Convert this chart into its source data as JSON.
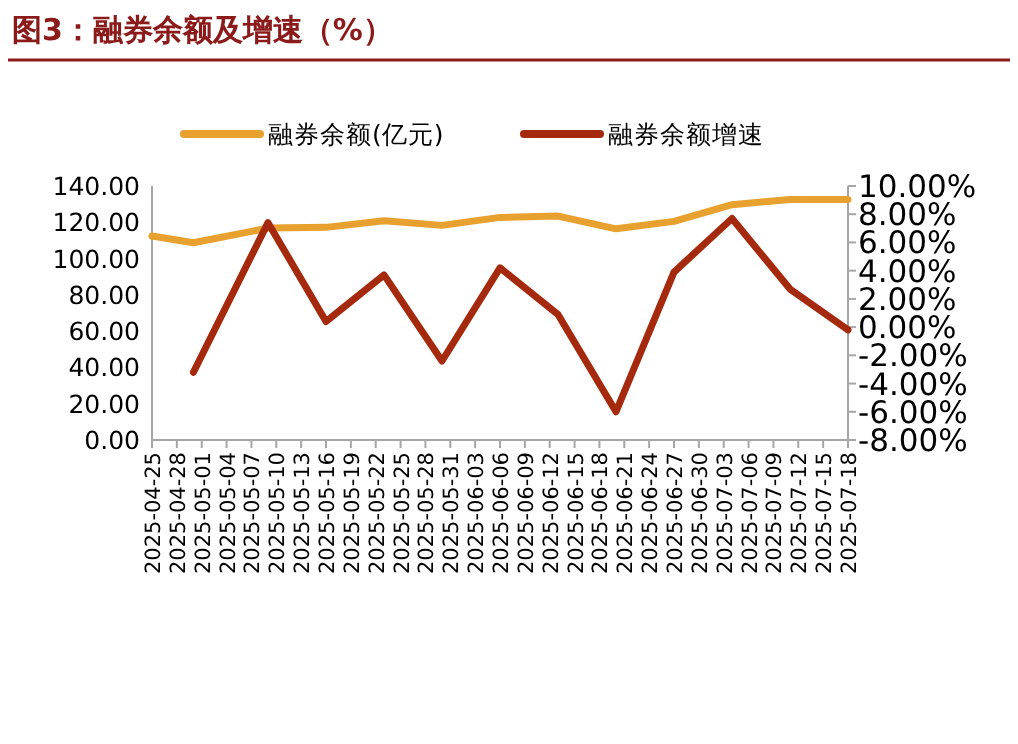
{
  "chart_data": {
    "type": "line",
    "title": "图3：融券余额及增速（%）",
    "x": [
      "2025-04-25",
      "2025-04-30",
      "2025-05-09",
      "2025-05-16",
      "2025-05-23",
      "2025-05-30",
      "2025-06-06",
      "2025-06-13",
      "2025-06-20",
      "2025-06-27",
      "2025-07-04",
      "2025-07-11",
      "2025-07-18"
    ],
    "series": [
      {
        "name": "融券余额(亿元)",
        "color": "#e8a02f",
        "values": [
          112.4,
          108.7,
          116.8,
          117.2,
          120.9,
          118.3,
          122.7,
          123.4,
          116.4,
          120.5,
          129.7,
          132.6,
          132.6
        ]
      },
      {
        "name": "融券余额增速",
        "color": "#a52a0d",
        "axis": "y2",
        "values": [
          null,
          -3.2,
          7.4,
          0.4,
          3.7,
          -2.4,
          4.2,
          0.9,
          -6.0,
          3.9,
          7.7,
          2.7,
          -0.2
        ]
      }
    ],
    "xlim": [
      "2025-04-25",
      "2025-07-18"
    ],
    "xticks": [
      "2025-04-25",
      "2025-04-28",
      "2025-05-01",
      "2025-05-04",
      "2025-05-07",
      "2025-05-10",
      "2025-05-13",
      "2025-05-16",
      "2025-05-19",
      "2025-05-22",
      "2025-05-25",
      "2025-05-28",
      "2025-05-31",
      "2025-06-03",
      "2025-06-06",
      "2025-06-09",
      "2025-06-12",
      "2025-06-15",
      "2025-06-18",
      "2025-06-21",
      "2025-06-24",
      "2025-06-27",
      "2025-06-30",
      "2025-07-03",
      "2025-07-06",
      "2025-07-09",
      "2025-07-12",
      "2025-07-15",
      "2025-07-18"
    ],
    "ylim": [
      0,
      140
    ],
    "yticks": [
      {
        "value": 0,
        "label": "0.00"
      },
      {
        "value": 20,
        "label": "20.00"
      },
      {
        "value": 40,
        "label": "40.00"
      },
      {
        "value": 60,
        "label": "60.00"
      },
      {
        "value": 80,
        "label": "80.00"
      },
      {
        "value": 100,
        "label": "100.00"
      },
      {
        "value": 120,
        "label": "120.00"
      },
      {
        "value": 140,
        "label": "140.00"
      }
    ],
    "y2lim": [
      -8,
      10
    ],
    "y2ticks": [
      {
        "value": -8,
        "label": "-8.00%"
      },
      {
        "value": -6,
        "label": "-6.00%"
      },
      {
        "value": -4,
        "label": "-4.00%"
      },
      {
        "value": -2,
        "label": "-2.00%"
      },
      {
        "value": 0,
        "label": "0.00%"
      },
      {
        "value": 2,
        "label": "2.00%"
      },
      {
        "value": 4,
        "label": "4.00%"
      },
      {
        "value": 6,
        "label": "6.00%"
      },
      {
        "value": 8,
        "label": "8.00%"
      },
      {
        "value": 10,
        "label": "10.00%"
      }
    ],
    "legend": "top",
    "grid": false,
    "marker": "none",
    "line_style": "solid"
  }
}
